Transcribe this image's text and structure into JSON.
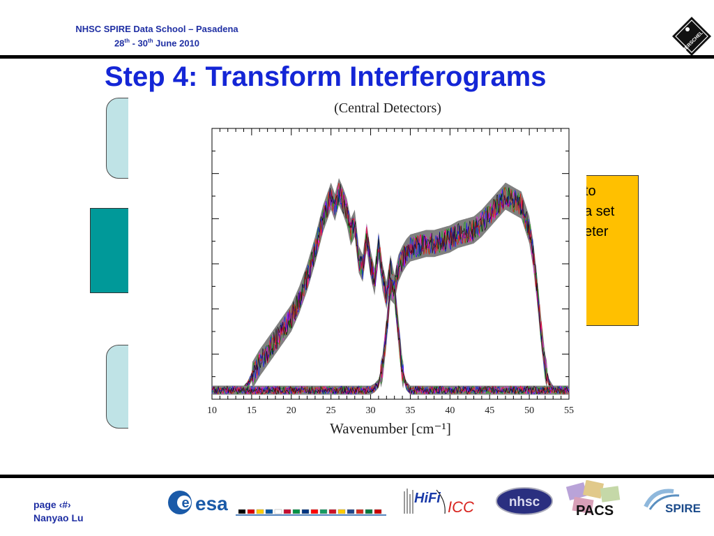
{
  "header": {
    "line1": "NHSC SPIRE Data School – Pasadena",
    "line2_a": "28",
    "line2_sup1": "th",
    "line2_b": " - 30",
    "line2_sup2": "th",
    "line2_c": " June 2010"
  },
  "slide": {
    "title": "Step 4: Transform Interferograms",
    "orange_box_lines": [
      "to",
      "a set",
      "eter"
    ]
  },
  "footer": {
    "page": "page ‹#›",
    "author": "Nanyao Lu"
  },
  "logos": {
    "herschel": "HERSCHEL",
    "esa": "esa",
    "hifi": "HiFi",
    "icc": "ICC",
    "nhsc": "nhsc",
    "pacs": "PACS",
    "spire": "SPIRE"
  },
  "colors": {
    "header_blue": "#1f2fa3",
    "title_blue": "#1426d6",
    "teal": "#009999",
    "light_teal": "#bfe3e6",
    "orange": "#ffc000",
    "spectrum_band": "#808080"
  },
  "chart_data": {
    "type": "line",
    "title": "(Central Detectors)",
    "xlabel": "Wavenumber [cm⁻¹]",
    "ylabel": "",
    "xlim": [
      10,
      55
    ],
    "ylim": [
      0,
      1.2
    ],
    "x_ticks": [
      "10",
      "15",
      "20",
      "25",
      "30",
      "35",
      "40",
      "45",
      "50",
      "55"
    ],
    "grid": false,
    "series": [
      {
        "x": [
          10,
          14,
          14.5,
          15,
          16,
          17,
          18,
          19,
          20,
          21,
          22,
          23,
          24,
          25,
          25.5,
          26,
          26.5,
          27,
          27.5,
          28,
          28.5,
          29,
          29.5,
          30,
          30.5,
          31,
          31.5,
          32,
          32.5,
          33,
          33.5,
          34,
          34.5,
          35,
          36,
          37,
          38,
          39,
          40,
          41,
          42,
          43,
          44,
          45,
          46,
          47,
          48,
          49,
          50,
          50.5,
          51,
          51.5,
          52,
          52.5,
          53,
          55
        ],
        "y": [
          0.04,
          0.04,
          0.06,
          0.1,
          0.16,
          0.21,
          0.26,
          0.31,
          0.36,
          0.44,
          0.54,
          0.66,
          0.8,
          0.9,
          0.85,
          0.92,
          0.88,
          0.83,
          0.74,
          0.78,
          0.62,
          0.58,
          0.72,
          0.6,
          0.52,
          0.68,
          0.54,
          0.46,
          0.58,
          0.49,
          0.58,
          0.62,
          0.65,
          0.67,
          0.68,
          0.69,
          0.69,
          0.7,
          0.71,
          0.73,
          0.74,
          0.75,
          0.78,
          0.82,
          0.86,
          0.9,
          0.88,
          0.86,
          0.75,
          0.64,
          0.48,
          0.3,
          0.14,
          0.07,
          0.04,
          0.04
        ]
      },
      {
        "x": [
          10,
          30,
          30.5,
          31,
          31.5,
          32,
          32.5,
          33,
          33.5,
          34,
          34.5,
          35,
          36,
          55
        ],
        "y": [
          0.04,
          0.04,
          0.05,
          0.07,
          0.14,
          0.3,
          0.5,
          0.48,
          0.3,
          0.12,
          0.06,
          0.04,
          0.04,
          0.04
        ]
      }
    ]
  }
}
